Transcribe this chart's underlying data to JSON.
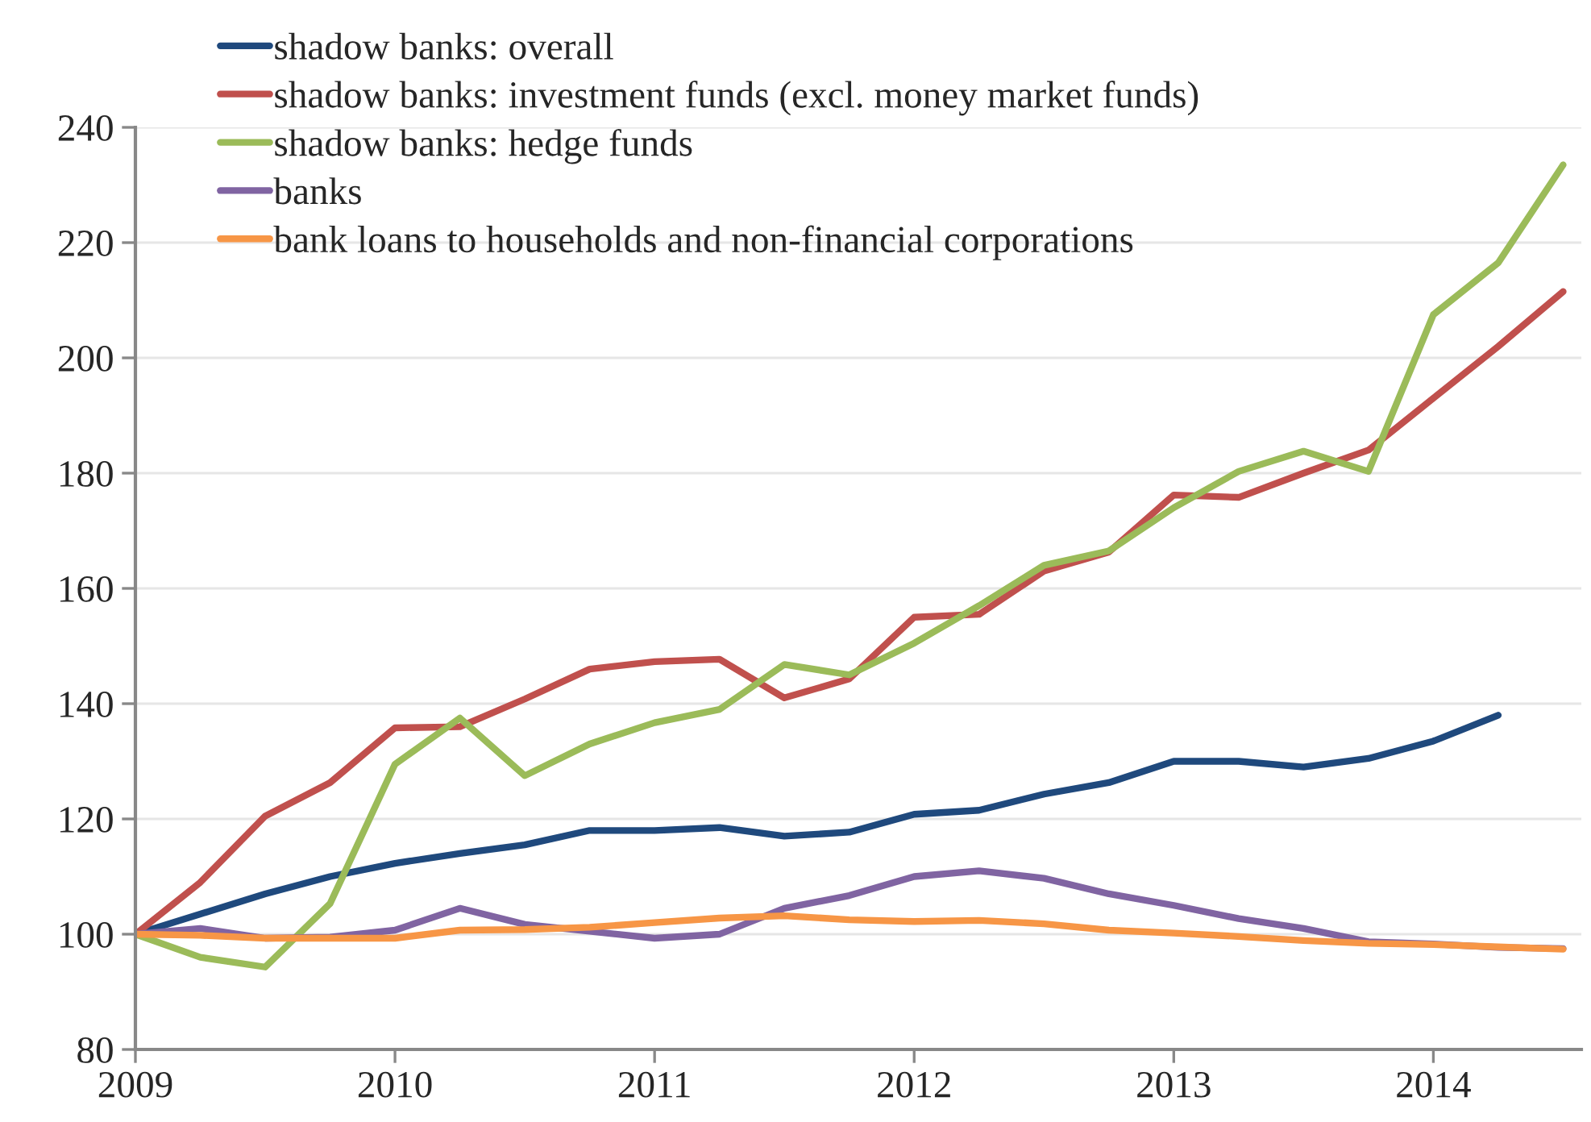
{
  "chart_data": {
    "type": "line",
    "x": [
      2009,
      2009.25,
      2009.5,
      2009.75,
      2010,
      2010.25,
      2010.5,
      2010.75,
      2011,
      2011.25,
      2011.5,
      2011.75,
      2012,
      2012.25,
      2012.5,
      2012.75,
      2013,
      2013.25,
      2013.5,
      2013.75,
      2014,
      2014.25,
      2014.5
    ],
    "series": [
      {
        "name": "shadow banks: overall",
        "color": "#1f497d",
        "values": [
          100,
          103.5,
          107,
          110,
          112.3,
          114,
          115.5,
          118,
          118,
          118.5,
          117,
          117.7,
          120.8,
          121.5,
          124.3,
          126.3,
          130,
          130,
          129,
          130.5,
          133.5,
          138,
          null
        ]
      },
      {
        "name": "shadow banks: investment funds (excl. money market funds)",
        "color": "#c0504d",
        "values": [
          100,
          109,
          120.5,
          126.3,
          135.8,
          136,
          140.8,
          146,
          147.3,
          147.7,
          141,
          144.3,
          155,
          155.5,
          163,
          166.3,
          176.2,
          175.8,
          180,
          184,
          193,
          202,
          211.5
        ]
      },
      {
        "name": "shadow banks: hedge funds",
        "color": "#9bbb59",
        "values": [
          100,
          96,
          94.3,
          105.3,
          129.5,
          137.5,
          127.5,
          133,
          136.7,
          139,
          146.8,
          145,
          150.5,
          157,
          164,
          166.5,
          174,
          180.3,
          183.8,
          180.3,
          207.5,
          216.5,
          233.5
        ]
      },
      {
        "name": "banks",
        "color": "#8064a2",
        "values": [
          100,
          101,
          99.3,
          99.5,
          100.7,
          104.5,
          101.7,
          100.5,
          99.3,
          100,
          104.5,
          106.7,
          110,
          111,
          109.7,
          107,
          105,
          102.7,
          101,
          98.7,
          98.3,
          97.7,
          97.5
        ]
      },
      {
        "name": "bank loans to households and non-financial corporations",
        "color": "#f79646",
        "values": [
          100,
          99.8,
          99.3,
          99.3,
          99.3,
          100.7,
          100.8,
          101.2,
          102,
          102.8,
          103.2,
          102.5,
          102.2,
          102.4,
          101.8,
          100.7,
          100.2,
          99.6,
          98.9,
          98.4,
          98.2,
          97.8,
          97.4
        ]
      }
    ],
    "xlim": [
      2009,
      2014.57
    ],
    "xticks": [
      2009,
      2010,
      2011,
      2012,
      2013,
      2014
    ],
    "ylim": [
      80,
      240
    ],
    "yticks": [
      80,
      100,
      120,
      140,
      160,
      180,
      200,
      220,
      240
    ],
    "grid": "y",
    "legend": "top left",
    "marker": "none",
    "line_style": "solid"
  }
}
